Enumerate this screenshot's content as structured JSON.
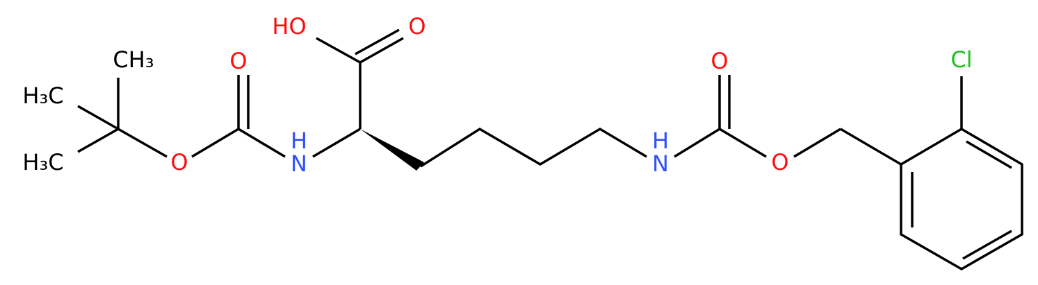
{
  "atoms": [
    {
      "label": "CH₃"
    },
    {
      "label": "H₃C"
    },
    {
      "label": "H₃C"
    },
    {
      "label": "O"
    },
    {
      "label": "O"
    },
    {
      "label": "N"
    },
    {
      "label": "H"
    },
    {
      "label": "HO"
    },
    {
      "label": "O"
    },
    {
      "label": "N"
    },
    {
      "label": "H"
    },
    {
      "label": "O"
    },
    {
      "label": "O"
    },
    {
      "label": "Cl"
    }
  ]
}
